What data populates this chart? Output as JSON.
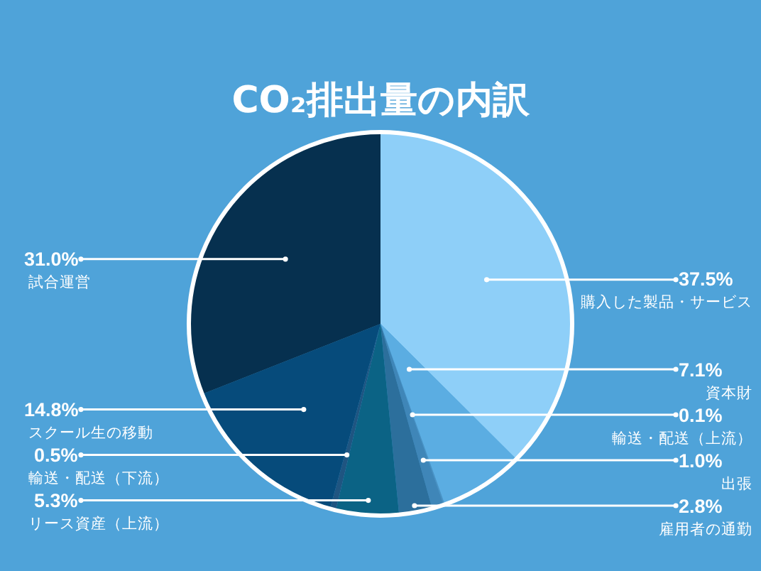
{
  "chart_data": {
    "type": "pie",
    "title": "CO₂排出量の内訳",
    "categories": [
      "購入した製品・サービス",
      "資本財",
      "輸送・配送（上流）",
      "出張",
      "雇用者の通勤",
      "リース資産（上流）",
      "輸送・配送（下流）",
      "スクール生の移動",
      "試合運営"
    ],
    "values": [
      37.5,
      7.1,
      0.1,
      1.0,
      2.8,
      5.3,
      0.5,
      14.8,
      31.0
    ],
    "colors": [
      "#8ecff8",
      "#5badE2",
      "#4a92c4",
      "#3f86b8",
      "#2c6f9c",
      "#0b6385",
      "#1f5581",
      "#064b7b",
      "#06304f"
    ],
    "value_labels": [
      "37.5%",
      "7.1%",
      "0.1%",
      "1.0%",
      "2.8%",
      "5.3%",
      "0.5%",
      "14.8%",
      "31.0%"
    ],
    "legend": false
  }
}
